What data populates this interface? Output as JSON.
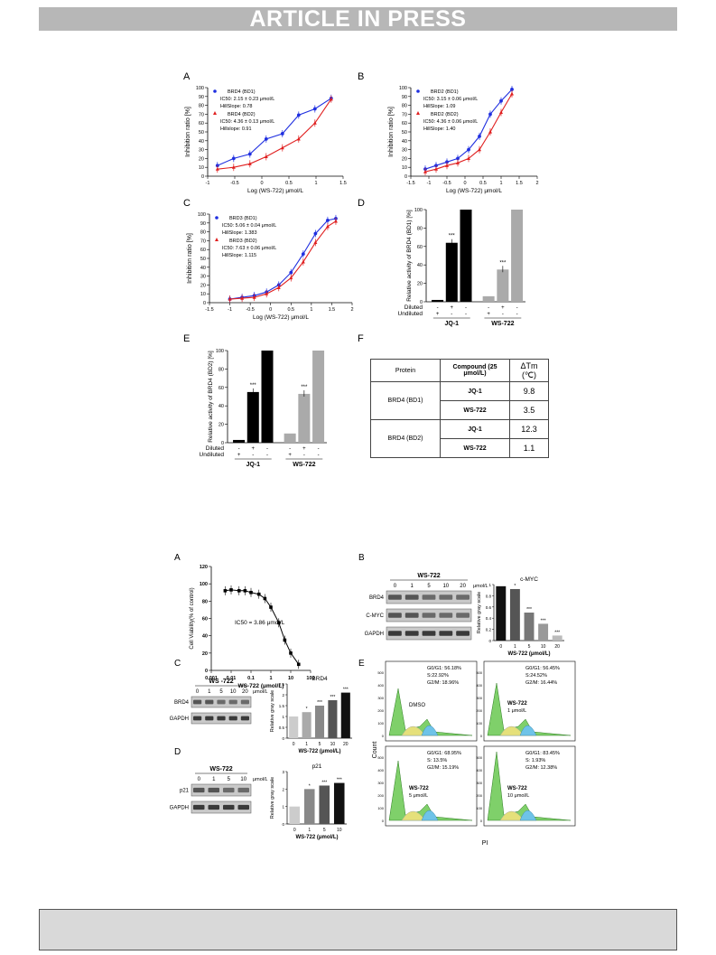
{
  "header": {
    "banner": "ARTICLE IN PRESS"
  },
  "figure1": {
    "panels": {
      "A": "A",
      "B": "B",
      "C": "C",
      "D": "D",
      "E": "E",
      "F": "F"
    },
    "curveA": {
      "ylabel": "Inhibition ratio [%]",
      "xlabel": "Log (WS-722) μmol/L",
      "s1_name": "BRD4 (BD1)",
      "s1_ic": "IC50: 2.15 ± 0.23 μmol/L",
      "s1_hill": "HillSlope: 0.78",
      "s2_name": "BRD4 (BD2)",
      "s2_ic": "IC50: 4.36 ± 0.13 μmol/L",
      "s2_hill": "Hillslope: 0.91"
    },
    "curveB": {
      "ylabel": "Inhibition ratio [%]",
      "xlabel": "Log (WS-722) μmol/L",
      "s1_name": "BRD2 (BD1)",
      "s1_ic": "IC50: 3.15 ± 0.06 μmol/L",
      "s1_hill": "HillSlope: 1.09",
      "s2_name": "BRD2 (BD2)",
      "s2_ic": "IC50: 4.36 ± 0.06 μmol/L",
      "s2_hill": "HillSlope: 1.40"
    },
    "curveC": {
      "ylabel": "Inhibition ratio [%]",
      "xlabel": "Log (WS-722) μmol/L",
      "s1_name": "BRD3 (BD1)",
      "s1_ic": "IC50: 5.06 ± 0.04 μmol/L",
      "s1_hill": "HillSlope: 1.383",
      "s2_name": "BRD3 (BD2)",
      "s2_ic": "IC50: 7.63 ± 0.06 μmol/L",
      "s2_hill": "HillSlope: 1.115"
    },
    "barD": {
      "ylabel": "Relative activity of BRD4 (BD1) [%]",
      "g1": "JQ-1",
      "g2": "WS-722",
      "diluted": "Diluted",
      "undiluted": "Undiluted",
      "sig": "***"
    },
    "barE": {
      "ylabel": "Relative activity of BRD4 (BD2) [%]",
      "g1": "JQ-1",
      "g2": "WS-722",
      "diluted": "Diluted",
      "undiluted": "Undiluted",
      "sig": "***"
    },
    "table": {
      "headers": [
        "Protein",
        "Compound (25 μmol/L)",
        "ΔTm (℃)"
      ],
      "rows": [
        {
          "protein": "BRD4 (BD1)",
          "c1": "JQ-1",
          "v1": "9.8",
          "c2": "WS-722",
          "v2": "3.5"
        },
        {
          "protein": "BRD4 (BD2)",
          "c1": "JQ-1",
          "v1": "12.3",
          "c2": "WS-722",
          "v2": "1.1"
        }
      ]
    }
  },
  "figure2": {
    "viability": {
      "ylabel": "Cell Viability(% of control)",
      "xlabel": "WS-722 (μmol/L)",
      "ic": "IC50 = 3.86 μmol/L"
    },
    "blotB": {
      "title": "WS-722",
      "conc": [
        "0",
        "1",
        "5",
        "10",
        "20"
      ],
      "unit": "μmol/L",
      "rows": [
        "BRD4",
        "C-MYC",
        "GAPDH"
      ],
      "bar_title": "c-MYC",
      "bar_ylabel": "Relative gray scale",
      "bar_xlabel": "WS-722 (μmol/L)"
    },
    "blotC": {
      "title": "WS -722",
      "conc": [
        "0",
        "1",
        "5",
        "10",
        "20"
      ],
      "unit": "μmol/L",
      "rows": [
        "BRD4",
        "GAPDH"
      ],
      "bar_title": "BRD4",
      "bar_ylabel": "Relative gray scale",
      "bar_xlabel": "WS-722 (μmol/L)"
    },
    "blotD": {
      "title": "WS-722",
      "conc": [
        "0",
        "1",
        "5",
        "10"
      ],
      "unit": "μmol/L",
      "rows": [
        "p21",
        "GAPDH"
      ],
      "bar_title": "p21",
      "bar_ylabel": "Relative gray scale",
      "bar_xlabel": "WS-722 (μmol/L)"
    },
    "flow": {
      "ylabel": "Count",
      "xlabel": "PI",
      "panels": [
        {
          "g0": "G0/G1: 56.18%",
          "s": "S:22.92%",
          "g2": "G2/M: 18.96%",
          "name": "DMSO",
          "dose": ""
        },
        {
          "g0": "G0/G1: 56.45%",
          "s": "S:24.52%",
          "g2": "G2/M: 16.44%",
          "name": "WS-722",
          "dose": "1 μmol/L"
        },
        {
          "g0": "G0/G1: 68.95%",
          "s": "S: 13.5%",
          "g2": "G2/M: 15.19%",
          "name": "WS-722",
          "dose": "5 μmol/L"
        },
        {
          "g0": "G0/G1: 83.45%",
          "s": "S: 1.93%",
          "g2": "G2/M: 12.38%",
          "name": "WS-722",
          "dose": "10 μmol/L"
        }
      ]
    }
  },
  "chart_data": [
    {
      "type": "line",
      "title": "",
      "xlabel": "Log (WS-722) μmol/L",
      "ylabel": "Inhibition ratio [%]",
      "xlim": [
        -1.0,
        1.5
      ],
      "ylim": [
        0,
        100
      ],
      "series": [
        {
          "name": "BRD4 (BD1)",
          "x": [
            -0.82,
            -0.52,
            -0.22,
            0.08,
            0.38,
            0.68,
            0.98,
            1.28
          ],
          "y": [
            12,
            20,
            25,
            42,
            48,
            69,
            76,
            88
          ]
        },
        {
          "name": "BRD4 (BD2)",
          "x": [
            -0.82,
            -0.52,
            -0.22,
            0.08,
            0.38,
            0.68,
            0.98,
            1.28
          ],
          "y": [
            8,
            10,
            14,
            22,
            32,
            42,
            60,
            87
          ]
        }
      ]
    },
    {
      "type": "line",
      "title": "",
      "xlabel": "Log (WS-722) μmol/L",
      "ylabel": "Inhibition ratio [%]",
      "xlim": [
        -1.5,
        2.0
      ],
      "ylim": [
        0,
        100
      ],
      "series": [
        {
          "name": "BRD2 (BD1)",
          "x": [
            -1.1,
            -0.8,
            -0.5,
            -0.2,
            0.1,
            0.4,
            0.7,
            1.0,
            1.3
          ],
          "y": [
            8,
            12,
            16,
            20,
            30,
            45,
            70,
            85,
            98
          ]
        },
        {
          "name": "BRD2 (BD2)",
          "x": [
            -1.1,
            -0.8,
            -0.5,
            -0.2,
            0.1,
            0.4,
            0.7,
            1.0,
            1.3
          ],
          "y": [
            5,
            8,
            12,
            15,
            20,
            30,
            50,
            72,
            93
          ]
        }
      ]
    },
    {
      "type": "line",
      "title": "",
      "xlabel": "Log (WS-722) μmol/L",
      "ylabel": "Inhibition ratio [%]",
      "xlim": [
        -1.5,
        2.0
      ],
      "ylim": [
        0,
        100
      ],
      "series": [
        {
          "name": "BRD3 (BD1)",
          "x": [
            -1.0,
            -0.7,
            -0.4,
            -0.1,
            0.2,
            0.5,
            0.8,
            1.1,
            1.4,
            1.6
          ],
          "y": [
            4,
            6,
            8,
            12,
            20,
            34,
            55,
            78,
            93,
            95
          ]
        },
        {
          "name": "BRD3 (BD2)",
          "x": [
            -1.0,
            -0.7,
            -0.4,
            -0.1,
            0.2,
            0.5,
            0.8,
            1.1,
            1.4,
            1.6
          ],
          "y": [
            4,
            5,
            6,
            10,
            17,
            28,
            46,
            68,
            86,
            92
          ]
        }
      ]
    },
    {
      "type": "bar",
      "title": "",
      "ylabel": "Relative activity of BRD4 (BD1) [%]",
      "ylim": [
        0,
        100
      ],
      "categories": [
        "JQ-1 undiluted",
        "JQ-1 diluted",
        "JQ-1 control",
        "WS-722 undiluted",
        "WS-722 diluted",
        "WS-722 control"
      ],
      "values": [
        2,
        64,
        100,
        6,
        35,
        100
      ]
    },
    {
      "type": "bar",
      "title": "",
      "ylabel": "Relative activity of BRD4 (BD2) [%]",
      "ylim": [
        0,
        100
      ],
      "categories": [
        "JQ-1 undiluted",
        "JQ-1 diluted",
        "JQ-1 control",
        "WS-722 undiluted",
        "WS-722 diluted",
        "WS-722 control"
      ],
      "values": [
        3,
        55,
        100,
        10,
        53,
        100
      ]
    },
    {
      "type": "line",
      "title": "",
      "xlabel": "WS-722 (μmol/L)",
      "ylabel": "Cell Viability(% of control)",
      "xscale": "log",
      "xlim": [
        0.001,
        100
      ],
      "ylim": [
        0,
        120
      ],
      "series": [
        {
          "name": "",
          "x": [
            0.005,
            0.01,
            0.025,
            0.05,
            0.1,
            0.25,
            0.5,
            1,
            2.5,
            5,
            10,
            25
          ],
          "y": [
            92,
            93,
            92,
            92,
            90,
            88,
            83,
            73,
            55,
            35,
            20,
            7
          ]
        }
      ]
    },
    {
      "type": "bar",
      "title": "c-MYC",
      "xlabel": "WS-722 (μmol/L)",
      "ylabel": "Relative gray scale",
      "ylim": [
        0,
        1.0
      ],
      "categories": [
        "0",
        "1",
        "5",
        "10",
        "20"
      ],
      "values": [
        0.97,
        0.92,
        0.5,
        0.3,
        0.09
      ]
    },
    {
      "type": "bar",
      "title": "BRD4",
      "xlabel": "WS-722 (μmol/L)",
      "ylabel": "Relative gray scale",
      "ylim": [
        0,
        2.5
      ],
      "categories": [
        "0",
        "1",
        "5",
        "10",
        "20"
      ],
      "values": [
        1.0,
        1.2,
        1.5,
        1.75,
        2.1
      ]
    },
    {
      "type": "bar",
      "title": "p21",
      "xlabel": "WS-722 (μmol/L)",
      "ylabel": "Relative gray scale",
      "ylim": [
        0,
        3.0
      ],
      "categories": [
        "0",
        "1",
        "5",
        "10"
      ],
      "values": [
        1.0,
        2.0,
        2.2,
        2.35
      ]
    }
  ]
}
